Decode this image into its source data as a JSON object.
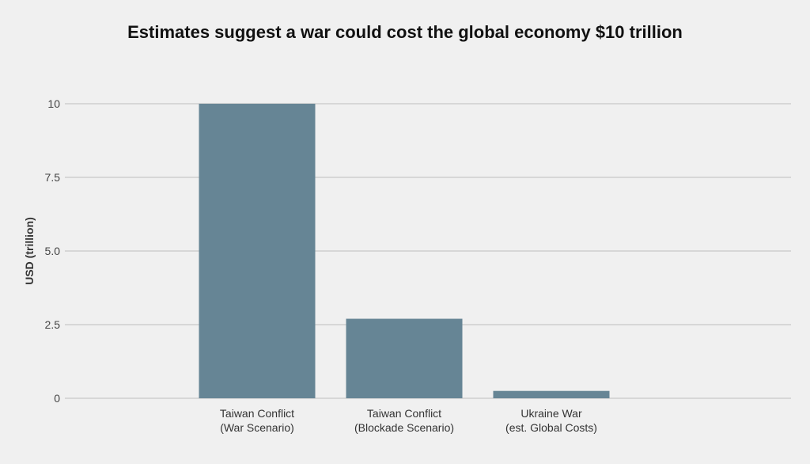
{
  "chart_data": {
    "type": "bar",
    "title": "Estimates suggest a war could cost the global economy $10 trillion",
    "xlabel": "",
    "ylabel": "USD (trillion)",
    "categories": [
      [
        "Taiwan Conflict",
        "(War Scenario)"
      ],
      [
        "Taiwan Conflict",
        "(Blockade Scenario)"
      ],
      [
        "Ukraine War",
        "(est. Global Costs)"
      ]
    ],
    "values": [
      10,
      2.7,
      0.25
    ],
    "yticks": [
      0,
      2.5,
      5,
      7.5,
      10
    ],
    "ytick_labels": [
      "0",
      "2.5",
      "5.0",
      "7.5",
      "10"
    ],
    "ylim": [
      0,
      10
    ],
    "grid": true,
    "bar_color": "#668595",
    "grid_color": "#c8c8c8"
  }
}
